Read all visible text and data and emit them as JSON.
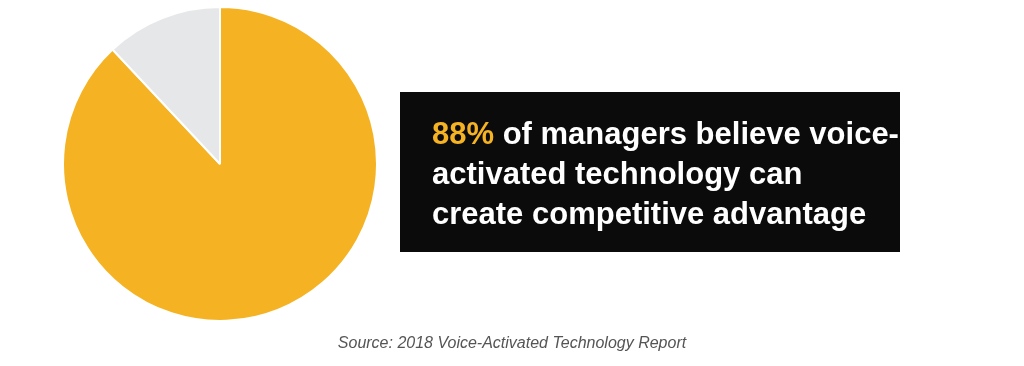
{
  "chart_data": {
    "type": "pie",
    "title": "88% of managers believe voice-activated technology can create competitive advantage",
    "categories": [
      null,
      null
    ],
    "values": [
      88,
      12
    ],
    "colors": [
      "#f5b324",
      "#e6e7e8"
    ],
    "legend": false,
    "annotations": [
      "Source: 2018 Voice-Activated Technology Report"
    ]
  }
}
